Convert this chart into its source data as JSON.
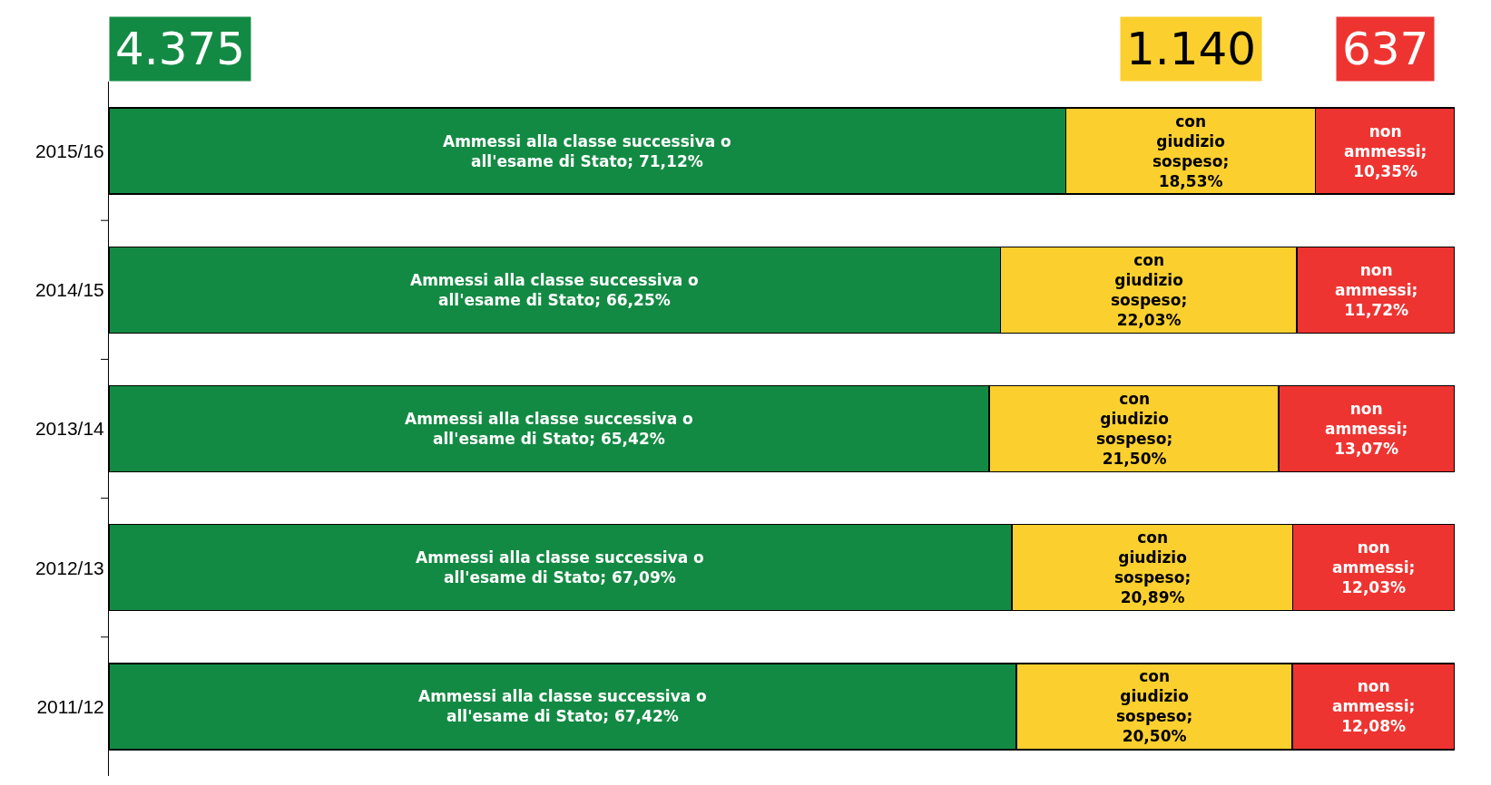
{
  "chart_data": {
    "type": "bar",
    "orientation": "horizontal",
    "stacked": true,
    "categories": [
      "2015/16",
      "2014/15",
      "2013/14",
      "2012/13",
      "2011/12"
    ],
    "xlim": [
      0,
      100
    ],
    "tick_labels": "y",
    "legend": false,
    "series": [
      {
        "color": "#138a43",
        "values": [
          71.12,
          66.25,
          65.42,
          67.09,
          67.42
        ],
        "value_labels": [
          "Ammessi alla classe successiva o all'esame di Stato; 71,12%",
          "Ammessi alla classe successiva o all'esame di Stato; 66,25%",
          "Ammessi alla classe successiva o all'esame di Stato; 65,42%",
          "Ammessi alla classe successiva o all'esame di Stato; 67,09%",
          "Ammessi alla classe successiva o all'esame di Stato; 67,42%"
        ]
      },
      {
        "color": "#fbd02e",
        "values": [
          18.53,
          22.03,
          21.5,
          20.89,
          20.5
        ],
        "value_labels": [
          "con giudizio sospeso; 18,53%",
          "con giudizio sospeso; 22,03%",
          "con giudizio sospeso; 21,50%",
          "con giudizio sospeso; 20,89%",
          "con giudizio sospeso; 20,50%"
        ]
      },
      {
        "color": "#ee3431",
        "values": [
          10.35,
          11.72,
          13.07,
          12.03,
          12.08
        ],
        "value_labels": [
          "non ammessi; 10,35%",
          "non ammessi; 11,72%",
          "non ammessi; 13,07%",
          "non ammessi; 12,03%",
          "non ammessi; 12,08%"
        ]
      }
    ],
    "annotations": [
      "4.375",
      "1.140",
      "637"
    ]
  }
}
